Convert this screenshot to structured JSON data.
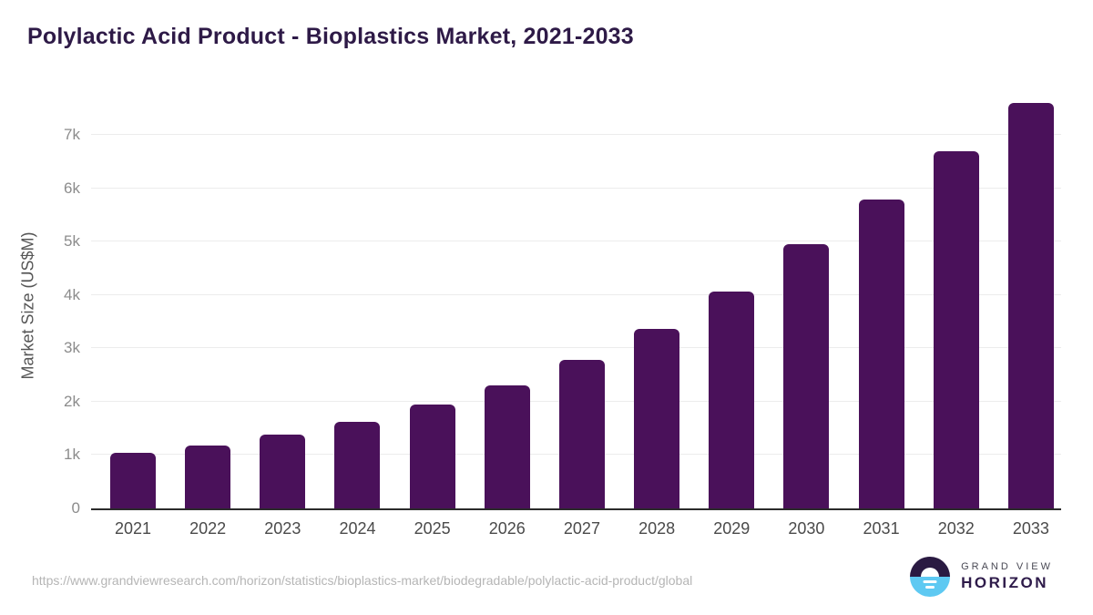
{
  "title": "Polylactic Acid Product - Bioplastics Market, 2021-2033",
  "chart_data": {
    "type": "bar",
    "title": "Polylactic Acid Product - Bioplastics Market, 2021-2033",
    "categories": [
      "2021",
      "2022",
      "2023",
      "2024",
      "2025",
      "2026",
      "2027",
      "2028",
      "2029",
      "2030",
      "2031",
      "2032",
      "2033"
    ],
    "values": [
      1040,
      1180,
      1390,
      1630,
      1950,
      2300,
      2790,
      3370,
      4070,
      4950,
      5800,
      6700,
      7610
    ],
    "xlabel": "",
    "ylabel": "Market Size (US$M)",
    "ylim": [
      0,
      7620
    ],
    "yticks": [
      {
        "label": "0",
        "value": 0
      },
      {
        "label": "1k",
        "value": 1000
      },
      {
        "label": "2k",
        "value": 2000
      },
      {
        "label": "3k",
        "value": 3000
      },
      {
        "label": "4k",
        "value": 4000
      },
      {
        "label": "5k",
        "value": 5000
      },
      {
        "label": "6k",
        "value": 6000
      },
      {
        "label": "7k",
        "value": 7000
      }
    ],
    "grid": true,
    "legend": "none",
    "bar_color": "#4a115a"
  },
  "colors": {
    "title": "#2e1a47",
    "bar": "#4a115a",
    "gridline": "#ececec",
    "axis_line": "#2b2b2b",
    "tick_label": "#8c8c8c",
    "x_label": "#4a4a4a",
    "url_text": "#b5b5b5",
    "logo_dark": "#2a1a42",
    "logo_blue": "#5ec9f2"
  },
  "footer": {
    "source_url": "https://www.grandviewresearch.com/horizon/statistics/bioplastics-market/biodegradable/polylactic-acid-product/global",
    "logo": {
      "line1": "GRAND VIEW",
      "line2": "HORIZON"
    }
  }
}
